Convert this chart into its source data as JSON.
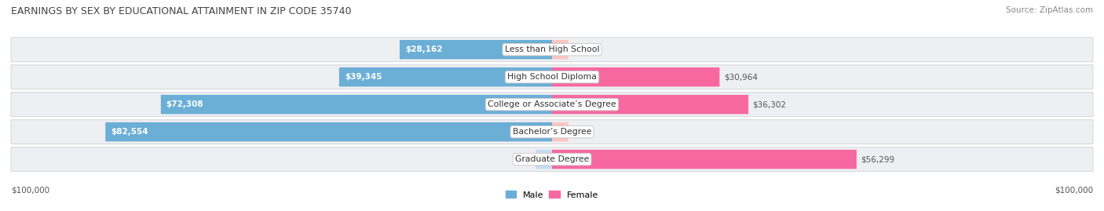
{
  "title": "EARNINGS BY SEX BY EDUCATIONAL ATTAINMENT IN ZIP CODE 35740",
  "source": "Source: ZipAtlas.com",
  "categories": [
    "Less than High School",
    "High School Diploma",
    "College or Associate’s Degree",
    "Bachelor’s Degree",
    "Graduate Degree"
  ],
  "male_values": [
    28162,
    39345,
    72308,
    82554,
    0
  ],
  "female_values": [
    0,
    30964,
    36302,
    0,
    56299
  ],
  "male_color": "#6baed6",
  "female_color": "#f768a1",
  "male_color_zero": "#c6dbef",
  "female_color_zero": "#fcc5c0",
  "max_value": 100000,
  "bg_row_color": "#eeeff2",
  "bg_row_edge": "#d8d9de",
  "label_dark": "#555555",
  "label_white": "#ffffff",
  "title_color": "#444444",
  "source_color": "#888888",
  "xlabel_left": "$100,000",
  "xlabel_right": "$100,000",
  "zero_stub": 3000
}
